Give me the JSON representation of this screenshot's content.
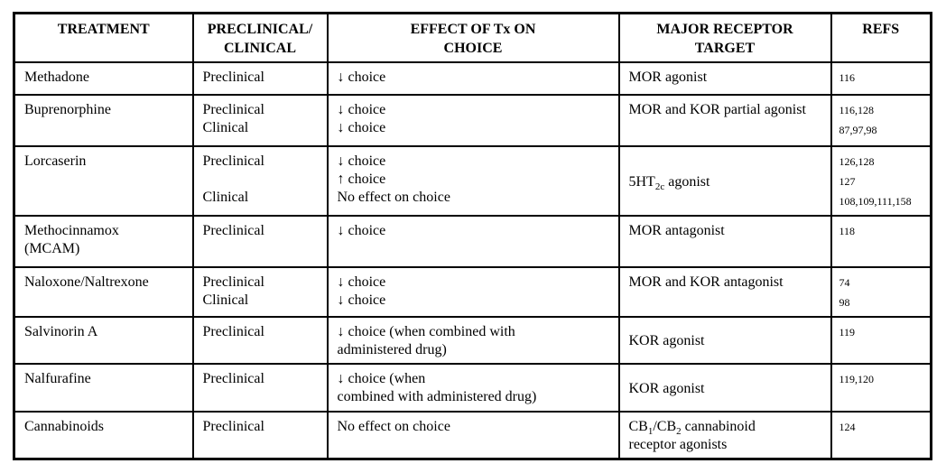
{
  "page": {
    "background_color": "#ffffff",
    "grid_color": "#000000"
  },
  "table": {
    "columns": [
      {
        "key": "treatment",
        "label_lines": [
          "TREATMENT"
        ]
      },
      {
        "key": "phase",
        "label_lines": [
          "PRECLINICAL/",
          "CLINICAL"
        ]
      },
      {
        "key": "effect",
        "label_lines": [
          "EFFECT OF Tx ON",
          "CHOICE"
        ]
      },
      {
        "key": "target",
        "label_lines": [
          "MAJOR RECEPTOR",
          "TARGET"
        ]
      },
      {
        "key": "refs",
        "label_lines": [
          "REFS"
        ]
      }
    ],
    "rows": [
      {
        "treatment": [
          "Methadone"
        ],
        "phase": [
          "Preclinical"
        ],
        "effect": [
          "↓ choice"
        ],
        "target": [
          "MOR agonist"
        ],
        "refs": [
          "116"
        ]
      },
      {
        "treatment": [
          "Buprenorphine"
        ],
        "phase": [
          "Preclinical",
          "Clinical"
        ],
        "effect": [
          "↓ choice",
          "↓ choice"
        ],
        "target": [
          "MOR and KOR partial agonist"
        ],
        "refs": [
          "116,128",
          "87,97,98"
        ]
      },
      {
        "treatment": [
          "Lorcaserin"
        ],
        "phase": [
          "Preclinical",
          "",
          "Clinical"
        ],
        "effect": [
          "↓ choice",
          "↑ choice",
          "No effect on choice"
        ],
        "target": [
          "5HT~2c~ agonist"
        ],
        "target_valign": "middle",
        "refs": [
          "126,128",
          "127",
          "108,109,111,158"
        ]
      },
      {
        "treatment": [
          "Methocinnamox",
          "(MCAM)"
        ],
        "phase": [
          "Preclinical"
        ],
        "effect": [
          "↓ choice"
        ],
        "target": [
          "MOR antagonist"
        ],
        "refs": [
          "118"
        ]
      },
      {
        "treatment": [
          "Naloxone/Naltrexone"
        ],
        "phase": [
          "Preclinical",
          "Clinical"
        ],
        "effect": [
          "↓ choice",
          "↓ choice"
        ],
        "target": [
          "MOR and KOR antagonist"
        ],
        "refs": [
          "74",
          "98"
        ]
      },
      {
        "treatment": [
          "Salvinorin A"
        ],
        "phase": [
          "Preclinical"
        ],
        "effect": [
          "↓ choice (when combined with",
          "administered drug)"
        ],
        "target": [
          "KOR agonist"
        ],
        "target_valign": "middle",
        "refs": [
          "119"
        ]
      },
      {
        "treatment": [
          "Nalfurafine"
        ],
        "phase": [
          "Preclinical"
        ],
        "effect": [
          "↓ choice (when",
          "combined with administered drug)"
        ],
        "target": [
          "KOR agonist"
        ],
        "target_valign": "middle",
        "refs": [
          "119,120"
        ]
      },
      {
        "treatment": [
          "Cannabinoids"
        ],
        "phase": [
          "Preclinical"
        ],
        "effect": [
          "No effect on choice"
        ],
        "target": [
          "CB~1~/CB~2~ cannabinoid",
          "receptor agonists"
        ],
        "refs": [
          "124"
        ]
      }
    ]
  }
}
